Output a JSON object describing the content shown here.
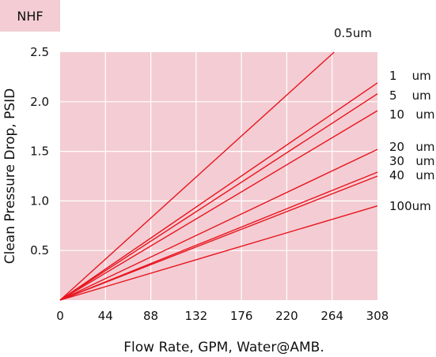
{
  "colors": {
    "plot_background": "#f3cdd3",
    "tag_background": "#f3cdd3",
    "grid": "#ffffff",
    "line": "#e8141e"
  },
  "chart_data": {
    "type": "line",
    "tag": "NHF",
    "title": "",
    "xlabel": "Flow Rate, GPM, Water@AMB.",
    "ylabel": "Clean Pressure Drop, PSID",
    "xlim": [
      0,
      308
    ],
    "ylim": [
      0,
      2.5
    ],
    "xticks": [
      "0",
      "44",
      "88",
      "132",
      "176",
      "220",
      "264",
      "308"
    ],
    "yticks": [
      "0.5",
      "1.0",
      "1.5",
      "2.0",
      "2.5"
    ],
    "xtick_values": [
      0,
      44,
      88,
      132,
      176,
      220,
      264,
      308
    ],
    "ytick_values": [
      0.5,
      1.0,
      1.5,
      2.0,
      2.5
    ],
    "grid": true,
    "series": [
      {
        "name": "0.5um",
        "x": [
          0,
          266
        ],
        "y": [
          0,
          2.5
        ]
      },
      {
        "name": "1    um",
        "x": [
          0,
          308
        ],
        "y": [
          0,
          2.19
        ]
      },
      {
        "name": "5    um",
        "x": [
          0,
          308
        ],
        "y": [
          0,
          2.08
        ]
      },
      {
        "name": "10   um",
        "x": [
          0,
          308
        ],
        "y": [
          0,
          1.91
        ]
      },
      {
        "name": "20   um",
        "x": [
          0,
          308
        ],
        "y": [
          0,
          1.52
        ]
      },
      {
        "name": "30   um",
        "x": [
          0,
          308
        ],
        "y": [
          0,
          1.29
        ]
      },
      {
        "name": "40   um",
        "x": [
          0,
          308
        ],
        "y": [
          0,
          1.25
        ]
      },
      {
        "name": "100um",
        "x": [
          0,
          308
        ],
        "y": [
          0,
          0.95
        ]
      }
    ]
  }
}
